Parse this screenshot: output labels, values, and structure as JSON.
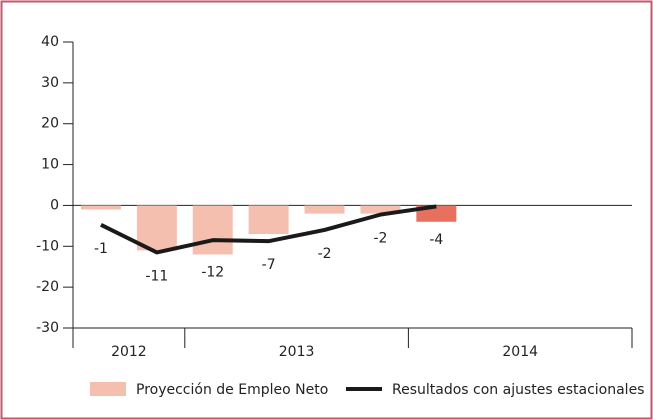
{
  "chart_data": {
    "type": "bar_line",
    "categories": [
      null,
      null,
      null,
      null,
      null,
      null,
      null,
      null,
      null,
      null
    ],
    "x_groups": [
      {
        "label": "2012",
        "count": 2
      },
      {
        "label": "2013",
        "count": 4
      },
      {
        "label": "2014",
        "count": 4
      }
    ],
    "series": [
      {
        "name": "Proyección de Empleo Neto",
        "type": "bar",
        "color": "#f5bfb0",
        "colors": [
          "#f5bfb0",
          "#f5bfb0",
          "#f5bfb0",
          "#f5bfb0",
          "#f5bfb0",
          "#f5bfb0",
          "#e8705f",
          null,
          null,
          null
        ],
        "values": [
          -1,
          -11,
          -12,
          -7,
          -2,
          -2,
          -4,
          null,
          null,
          null
        ]
      },
      {
        "name": "Resultados con ajustes estacionales",
        "type": "line",
        "color": "#1a1a1a",
        "values": [
          -4.75,
          -11.5,
          -8.5,
          -8.75,
          -6,
          -2.25,
          -0.25,
          null,
          null,
          null
        ]
      }
    ],
    "ylim": [
      -30,
      40
    ],
    "yticks": [
      -30,
      -20,
      -10,
      0,
      10,
      20,
      30,
      40
    ]
  }
}
